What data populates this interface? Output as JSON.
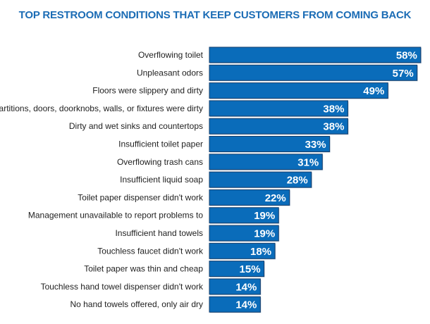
{
  "chart_data": {
    "type": "bar",
    "orientation": "horizontal",
    "title": "TOP RESTROOM CONDITIONS THAT KEEP CUSTOMERS FROM COMING BACK",
    "categories": [
      "Overflowing toilet",
      "Unpleasant odors",
      "Floors were slippery and dirty",
      "Partitions, doors, doorknobs, walls, or fixtures were dirty",
      "Dirty and wet sinks and countertops",
      "Insufficient toilet paper",
      "Overflowing trash cans",
      "Insufficient liquid soap",
      "Toilet paper dispenser didn't work",
      "Management unavailable to report problems to",
      "Insufficient hand towels",
      "Touchless faucet didn't work",
      "Toilet paper was thin and cheap",
      "Touchless hand towel dispenser didn't work",
      "No hand towels offered, only air dry"
    ],
    "values": [
      58,
      57,
      49,
      38,
      38,
      33,
      31,
      28,
      22,
      19,
      19,
      18,
      15,
      14,
      14
    ],
    "value_suffix": "%",
    "xlabel": "",
    "ylabel": "",
    "xlim": [
      0,
      58
    ],
    "grid": false,
    "colors": {
      "bar": "#0a6cba",
      "border": "#163e6b",
      "title": "#1b6cb5"
    }
  }
}
